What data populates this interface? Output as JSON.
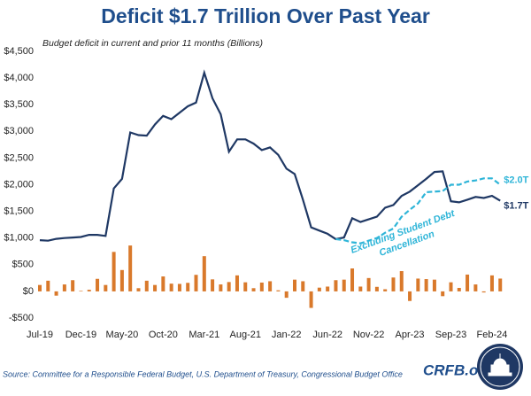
{
  "chart_data": {
    "type": "line",
    "title": "Deficit $1.7 Trillion Over Past Year",
    "subtitle": "Budget deficit in current and prior 11 months (Billions)",
    "categories": [
      "Jul-19",
      null,
      null,
      null,
      null,
      "Dec-19",
      null,
      null,
      null,
      null,
      "May-20",
      null,
      null,
      null,
      null,
      "Oct-20",
      null,
      null,
      null,
      null,
      "Mar-21",
      null,
      null,
      null,
      null,
      "Aug-21",
      null,
      null,
      null,
      null,
      "Jan-22",
      null,
      null,
      null,
      null,
      "Jun-22",
      null,
      null,
      null,
      null,
      "Nov-22",
      null,
      null,
      null,
      null,
      "Apr-23",
      null,
      null,
      null,
      null,
      "Sep-23",
      null,
      null,
      null,
      null,
      "Feb-24",
      null
    ],
    "series": [
      {
        "color": "#1f3864",
        "label": "$1.7T",
        "values": [
          960,
          950,
          985,
          1000,
          1010,
          1020,
          1060,
          1060,
          1040,
          1930,
          2110,
          2980,
          2930,
          2920,
          3130,
          3290,
          3230,
          3350,
          3470,
          3540,
          4100,
          3620,
          3320,
          2620,
          2850,
          2850,
          2770,
          2650,
          2700,
          2560,
          2300,
          2200,
          1720,
          1200,
          1140,
          1080,
          980,
          1010,
          1370,
          1300,
          1350,
          1400,
          1570,
          1620,
          1790,
          1870,
          1990,
          2110,
          2240,
          2250,
          1690,
          1670,
          1720,
          1770,
          1750,
          1790,
          1700
        ]
      },
      {
        "color": "#2fb5d8",
        "dashed": true,
        "label": "$2.0T",
        "values": [
          null,
          null,
          null,
          null,
          null,
          null,
          null,
          null,
          null,
          null,
          null,
          null,
          null,
          null,
          null,
          null,
          null,
          null,
          null,
          null,
          null,
          null,
          null,
          null,
          null,
          null,
          null,
          null,
          null,
          null,
          null,
          null,
          null,
          null,
          null,
          null,
          980,
          960,
          920,
          900,
          950,
          1000,
          1100,
          1180,
          1400,
          1530,
          1650,
          1860,
          1870,
          1880,
          2000,
          2000,
          2060,
          2080,
          2120,
          2120,
          2000
        ]
      },
      {
        "type": "bar",
        "color": "#d9792b",
        "values": [
          120,
          200,
          -80,
          130,
          210,
          10,
          30,
          235,
          120,
          740,
          400,
          860,
          60,
          200,
          120,
          280,
          145,
          140,
          160,
          310,
          660,
          225,
          130,
          175,
          300,
          170,
          60,
          165,
          190,
          20,
          -120,
          220,
          190,
          -310,
          70,
          90,
          210,
          220,
          430,
          90,
          250,
          85,
          40,
          260,
          380,
          -180,
          240,
          230,
          220,
          -90,
          170,
          65,
          315,
          130,
          -20,
          300,
          240
        ]
      }
    ],
    "annotation": [
      "Excluding Student Debt",
      "Cancellation"
    ],
    "ylim": [
      -500,
      4500
    ],
    "yticks": [
      {
        "value": -500,
        "label": "-$500"
      },
      {
        "value": 0,
        "label": "$0"
      },
      {
        "value": 500,
        "label": "$500"
      },
      {
        "value": 1000,
        "label": "$1,000"
      },
      {
        "value": 1500,
        "label": "$1,500"
      },
      {
        "value": 2000,
        "label": "$2,000"
      },
      {
        "value": 2500,
        "label": "$2,500"
      },
      {
        "value": 3000,
        "label": "$3,000"
      },
      {
        "value": 3500,
        "label": "$3,500"
      },
      {
        "value": 4000,
        "label": "$4,000"
      },
      {
        "value": 4500,
        "label": "$4,500"
      }
    ],
    "source": "Source: Committee for a Responsible Federal Budget, U.S. Department of Treasury, Congressional Budget Office",
    "brand": "CRFB.org"
  }
}
